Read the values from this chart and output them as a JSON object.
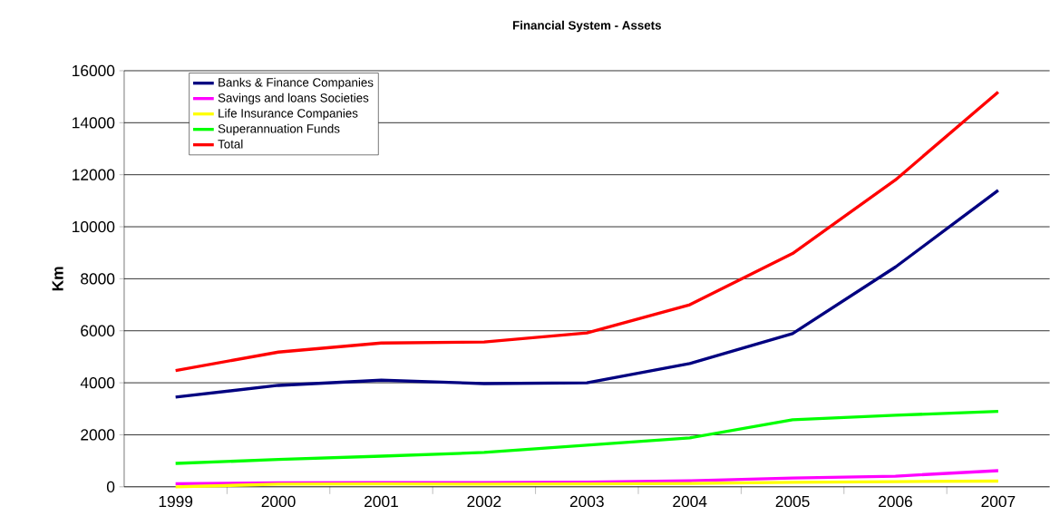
{
  "chart_data": {
    "type": "line",
    "title": "Financial System - Assets",
    "ylabel": "Km",
    "categories": [
      "1999",
      "2000",
      "2001",
      "2002",
      "2003",
      "2004",
      "2005",
      "2006",
      "2007"
    ],
    "series": [
      {
        "name": "Banks & Finance Companies",
        "color": "#000080",
        "values": [
          3450,
          3900,
          4100,
          3970,
          4000,
          4740,
          5890,
          8450,
          11400
        ]
      },
      {
        "name": "Savings and loans Societies",
        "color": "#ff00ff",
        "values": [
          120,
          150,
          160,
          160,
          180,
          230,
          340,
          410,
          620
        ]
      },
      {
        "name": "Life Insurance Companies",
        "color": "#ffff00",
        "values": [
          0,
          100,
          110,
          100,
          110,
          130,
          170,
          200,
          220
        ]
      },
      {
        "name": "Superannuation Funds",
        "color": "#00ff00",
        "values": [
          900,
          1050,
          1180,
          1320,
          1600,
          1880,
          2580,
          2750,
          2900
        ]
      },
      {
        "name": "Total",
        "color": "#ff0000",
        "values": [
          4470,
          5180,
          5530,
          5570,
          5920,
          7000,
          8970,
          11800,
          15180
        ]
      }
    ],
    "ylim": [
      0,
      16000
    ],
    "yticks": [
      0,
      2000,
      4000,
      6000,
      8000,
      10000,
      12000,
      14000,
      16000
    ],
    "grid": "y",
    "legend": "top left",
    "marker": "none",
    "line_style": "solid"
  }
}
